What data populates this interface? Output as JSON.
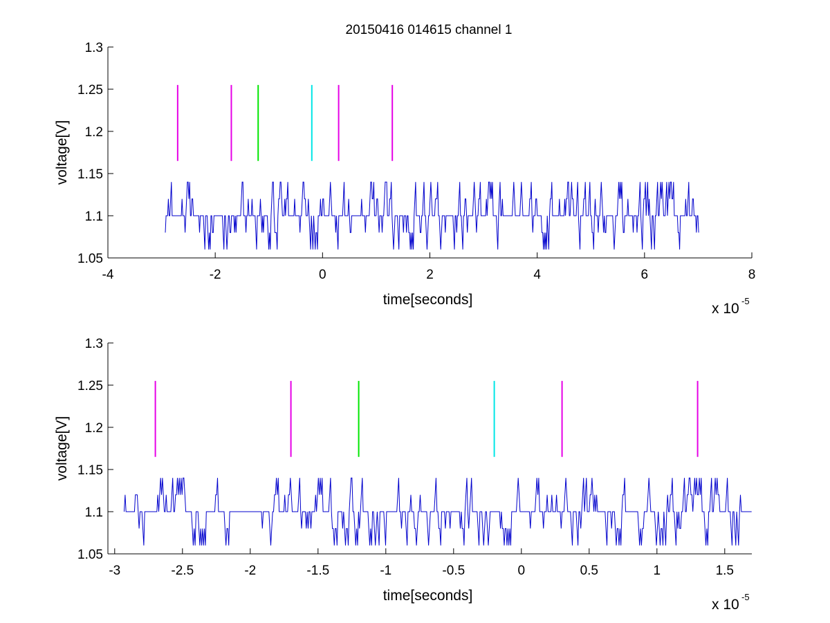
{
  "figure": {
    "title": "20150416 014615 channel 1"
  },
  "chart_data": [
    {
      "type": "line",
      "panel": "top",
      "title": "20150416 014615 channel 1",
      "xlabel": "time[seconds]",
      "ylabel": "voltage[V]",
      "x_multiplier_label": "x 10",
      "x_multiplier_exponent": "-5",
      "xlim": [
        -4,
        8
      ],
      "ylim": [
        1.05,
        1.3
      ],
      "xticks": [
        -4,
        -2,
        0,
        2,
        4,
        6,
        8
      ],
      "xtick_labels": [
        "-4",
        "-2",
        "0",
        "2",
        "4",
        "6",
        "8"
      ],
      "yticks": [
        1.05,
        1.1,
        1.15,
        1.2,
        1.25,
        1.3
      ],
      "ytick_labels": [
        "1.05",
        "1.1",
        "1.15",
        "1.2",
        "1.25",
        "1.3"
      ],
      "grid": false,
      "signal": {
        "color": "#0000cc",
        "x_range": [
          -2.93,
          7.02
        ],
        "levels": [
          1.06,
          1.08,
          1.1,
          1.12,
          1.14
        ],
        "baseline": 1.1
      },
      "markers": [
        {
          "x": -2.7,
          "y_range": [
            1.165,
            1.255
          ],
          "color": "#e600e6"
        },
        {
          "x": -1.7,
          "y_range": [
            1.165,
            1.255
          ],
          "color": "#e600e6"
        },
        {
          "x": -1.2,
          "y_range": [
            1.165,
            1.255
          ],
          "color": "#00e600"
        },
        {
          "x": -0.2,
          "y_range": [
            1.165,
            1.255
          ],
          "color": "#00e6e6"
        },
        {
          "x": 0.3,
          "y_range": [
            1.165,
            1.255
          ],
          "color": "#e600e6"
        },
        {
          "x": 1.3,
          "y_range": [
            1.165,
            1.255
          ],
          "color": "#e600e6"
        }
      ]
    },
    {
      "type": "line",
      "panel": "bottom",
      "title": "",
      "xlabel": "time[seconds]",
      "ylabel": "voltage[V]",
      "x_multiplier_label": "x 10",
      "x_multiplier_exponent": "-5",
      "xlim": [
        -3.05,
        1.7
      ],
      "ylim": [
        1.05,
        1.3
      ],
      "xticks": [
        -3,
        -2.5,
        -2,
        -1.5,
        -1,
        -0.5,
        0,
        0.5,
        1,
        1.5
      ],
      "xtick_labels": [
        "-3",
        "-2.5",
        "-2",
        "-1.5",
        "-1",
        "-0.5",
        "0",
        "0.5",
        "1",
        "1.5"
      ],
      "yticks": [
        1.05,
        1.1,
        1.15,
        1.2,
        1.25,
        1.3
      ],
      "ytick_labels": [
        "1.05",
        "1.1",
        "1.15",
        "1.2",
        "1.25",
        "1.3"
      ],
      "grid": false,
      "signal": {
        "color": "#0000cc",
        "x_range": [
          -2.93,
          1.7
        ],
        "levels": [
          1.06,
          1.08,
          1.1,
          1.12,
          1.14
        ],
        "baseline": 1.1
      },
      "markers": [
        {
          "x": -2.7,
          "y_range": [
            1.165,
            1.255
          ],
          "color": "#e600e6"
        },
        {
          "x": -1.7,
          "y_range": [
            1.165,
            1.255
          ],
          "color": "#e600e6"
        },
        {
          "x": -1.2,
          "y_range": [
            1.165,
            1.255
          ],
          "color": "#00e600"
        },
        {
          "x": -0.2,
          "y_range": [
            1.165,
            1.255
          ],
          "color": "#00e6e6"
        },
        {
          "x": 0.3,
          "y_range": [
            1.165,
            1.255
          ],
          "color": "#e600e6"
        },
        {
          "x": 1.3,
          "y_range": [
            1.165,
            1.255
          ],
          "color": "#e600e6"
        }
      ]
    }
  ]
}
